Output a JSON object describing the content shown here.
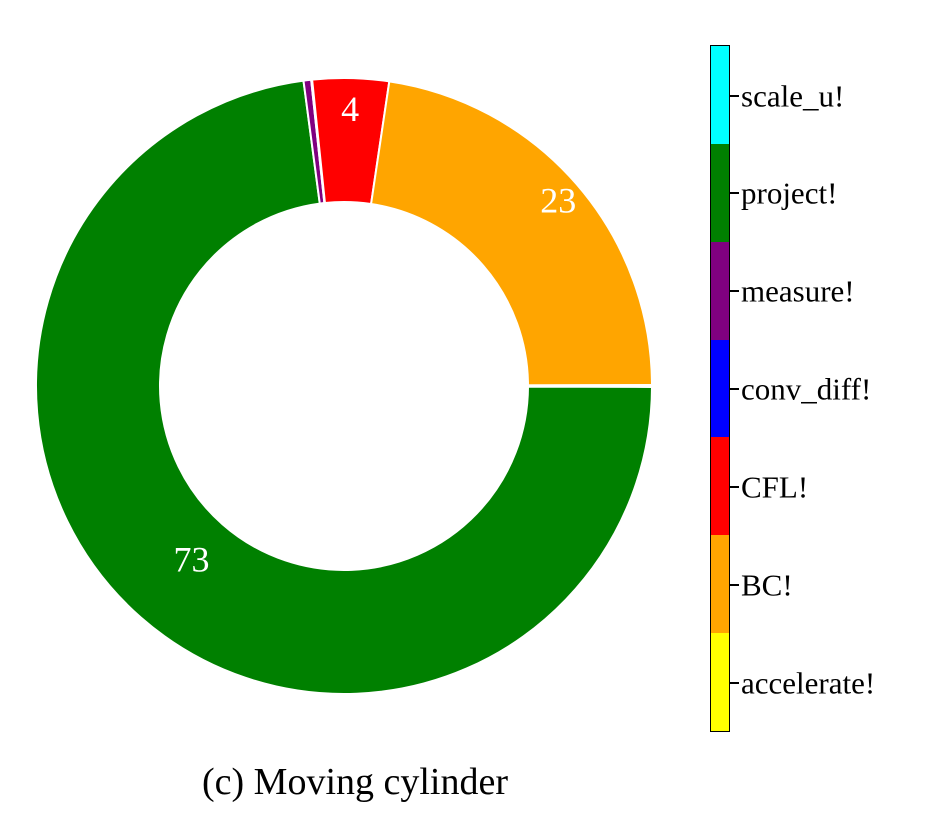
{
  "caption": {
    "text": "(c) Moving cylinder"
  },
  "chart_data": {
    "type": "pie",
    "style": "donut",
    "direction": "clockwise",
    "start_angle_deg": 0,
    "legend_position": "right-colorbar",
    "title": "",
    "slices": [
      {
        "label": "scale_u!",
        "color": "#00ffff",
        "value": 0.05,
        "pct_label": ""
      },
      {
        "label": "project!",
        "color": "#008000",
        "value": 72.85,
        "pct_label": "73",
        "label_r": 0.75
      },
      {
        "label": "measure!",
        "color": "#800080",
        "value": 0.4,
        "pct_label": ""
      },
      {
        "label": "conv_diff!",
        "color": "#0000ff",
        "value": 0.05,
        "pct_label": ""
      },
      {
        "label": "CFL!",
        "color": "#ff0000",
        "value": 4.0,
        "pct_label": "4",
        "label_r": 0.9
      },
      {
        "label": "BC!",
        "color": "#ffa500",
        "value": 22.6,
        "pct_label": "23",
        "label_r": 0.92
      },
      {
        "label": "accelerate!",
        "color": "#ffff00",
        "value": 0.05,
        "pct_label": ""
      }
    ],
    "pct_label_color": "#ffffff",
    "wedge_edge_color": "#ffffff"
  }
}
